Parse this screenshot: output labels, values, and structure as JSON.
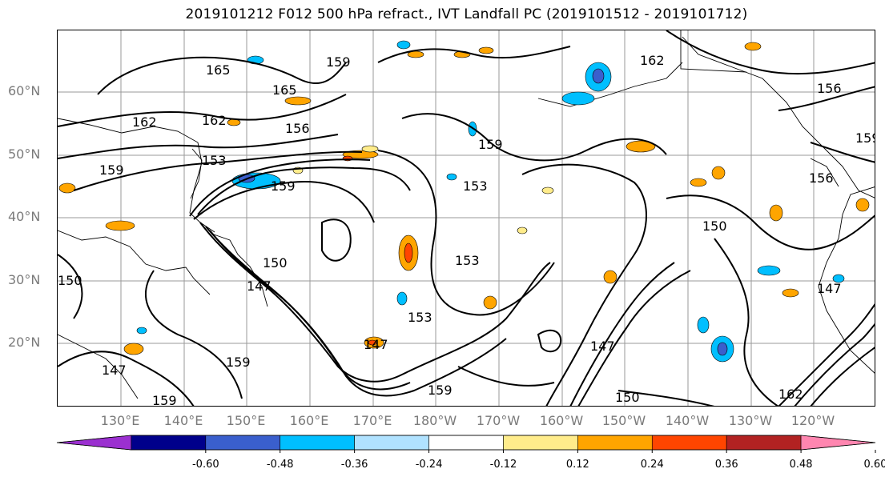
{
  "title": "2019101212 F012 500 hPa refract., IVT Landfall PC (2019101512 - 2019101712)",
  "lat_labels": [
    "60°N",
    "50°N",
    "40°N",
    "30°N",
    "20°N"
  ],
  "lon_labels": [
    "130°E",
    "140°E",
    "150°E",
    "160°E",
    "170°E",
    "180°W",
    "170°W",
    "160°W",
    "150°W",
    "140°W",
    "130°W",
    "120°W"
  ],
  "colorbar": {
    "colors": [
      "#9b30d0",
      "#00008b",
      "#3a5fcd",
      "#00bfff",
      "#b0e2ff",
      "#ffffff",
      "#ffec8b",
      "#ffa500",
      "#ff4500",
      "#b22222",
      "#ff86b0"
    ],
    "tick_labels": [
      "-0.60",
      "-0.48",
      "-0.36",
      "-0.24",
      "-0.12",
      "0.12",
      "0.24",
      "0.36",
      "0.48",
      "0.60"
    ]
  },
  "contour_labels": [
    "165",
    "165",
    "162",
    "162",
    "159",
    "159",
    "156",
    "153",
    "150",
    "147",
    "159",
    "153",
    "153",
    "150",
    "147",
    "153",
    "159",
    "162",
    "147",
    "150",
    "156",
    "159",
    "147",
    "162",
    "156",
    "159",
    "150",
    "147",
    "159",
    "159"
  ]
}
